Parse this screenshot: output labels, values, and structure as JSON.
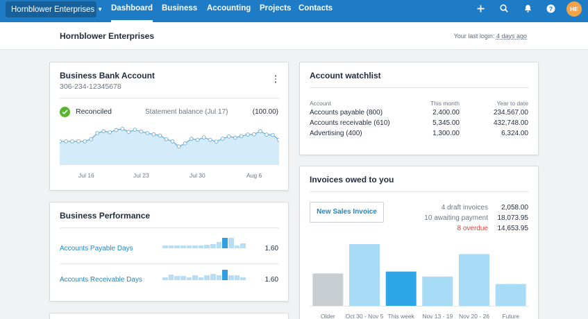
{
  "nav": {
    "org_name": "Hornblower Enterprises",
    "items": [
      {
        "label": "Dashboard",
        "active": true
      },
      {
        "label": "Business"
      },
      {
        "label": "Accounting"
      },
      {
        "label": "Projects"
      },
      {
        "label": "Contacts"
      }
    ],
    "icons": [
      "plus-icon",
      "search-icon",
      "bell-icon",
      "help-icon"
    ],
    "avatar_initials": "HE"
  },
  "org_header": {
    "title": "Hornblower Enterprises",
    "login_prefix": "Your last login: ",
    "login_time": "4 days ago"
  },
  "bank": {
    "title": "Business Bank Account",
    "account_number": "306-234-12345678",
    "status": "Reconciled",
    "statement_label": "Statement balance (Jul 17)",
    "statement_value": "(100.00)",
    "x_labels": [
      "Jul 16",
      "Jul 23",
      "Jul 30",
      "Aug 6"
    ],
    "sparkline": [
      0.55,
      0.55,
      0.55,
      0.55,
      0.55,
      0.62,
      0.82,
      0.88,
      0.85,
      0.92,
      0.96,
      0.86,
      0.93,
      0.87,
      0.82,
      0.78,
      0.74,
      0.62,
      0.55,
      0.38,
      0.48,
      0.63,
      0.6,
      0.68,
      0.6,
      0.54,
      0.64,
      0.71,
      0.67,
      0.72,
      0.77,
      0.78,
      0.88,
      0.77,
      0.76,
      0.6
    ]
  },
  "performance": {
    "title": "Business Performance",
    "rows": [
      {
        "label": "Accounts Payable Days",
        "value": "1.60"
      },
      {
        "label": "Accounts Receivable Days",
        "value": "1.60"
      }
    ]
  },
  "watchlist": {
    "title": "Account watchlist",
    "headers": [
      "Account",
      "This month",
      "Year to date"
    ],
    "rows": [
      {
        "account": "Accounts payable (800)",
        "month": "2,400.00",
        "ytd": "234,567.00"
      },
      {
        "account": "Accounts receivable (610)",
        "month": "5,345.00",
        "ytd": "432,748.00"
      },
      {
        "account": "Advertising (400)",
        "month": "1,300.00",
        "ytd": "6,324.00"
      }
    ]
  },
  "invoices": {
    "title": "Invoices owed to you",
    "new_button": "New Sales Invoice",
    "summary": [
      {
        "label": "4 draft invoices",
        "value": "2,058.00",
        "alert": false
      },
      {
        "label": "10 awaiting payment",
        "value": "18,073.95",
        "alert": false
      },
      {
        "label": "8 overdue",
        "value": "14,653.95",
        "alert": true
      }
    ]
  },
  "chart_data": {
    "type": "bar",
    "categories": [
      "Older",
      "Oct 30 - Nov 5",
      "This week",
      "Nov 13 - 19",
      "Nov 20 - 26",
      "Future"
    ],
    "values": [
      0.53,
      1.0,
      0.56,
      0.48,
      0.84,
      0.36
    ],
    "colors": [
      "#c9ced3",
      "#a8dbf6",
      "#2ea6e5",
      "#a8dbf6",
      "#a8dbf6",
      "#a8dbf6"
    ]
  },
  "colors": {
    "brand": "#1e7cc6",
    "link": "#1e87c8",
    "success": "#56b62a",
    "alert": "#e0463a"
  }
}
